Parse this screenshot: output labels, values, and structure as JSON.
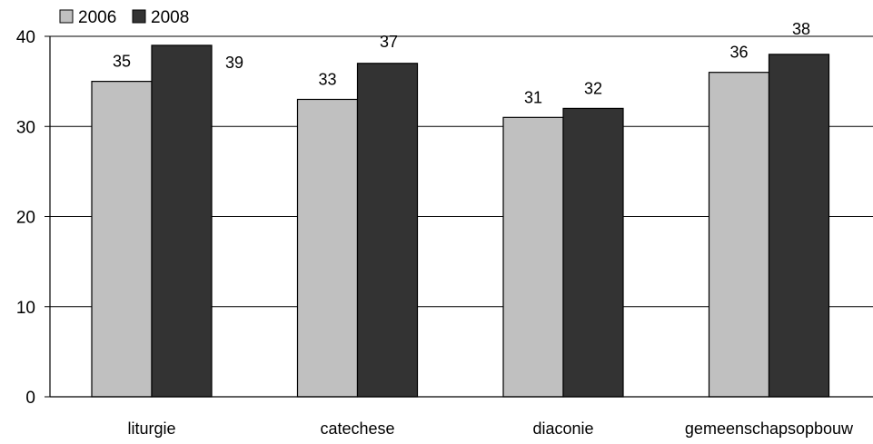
{
  "chart_data": {
    "type": "bar",
    "title": "",
    "xlabel": "",
    "ylabel": "",
    "categories": [
      "liturgie",
      "catechese",
      "diaconie",
      "gemeenschapsopbouw"
    ],
    "series": [
      {
        "name": "2006",
        "values": [
          35,
          33,
          31,
          36
        ],
        "color": "#c0c0c0"
      },
      {
        "name": "2008",
        "values": [
          39,
          37,
          32,
          38
        ],
        "color": "#333333"
      }
    ],
    "ylim": [
      0,
      40
    ],
    "yticks": [
      0,
      10,
      20,
      30,
      40
    ],
    "grid": true,
    "legend": "top-left"
  }
}
